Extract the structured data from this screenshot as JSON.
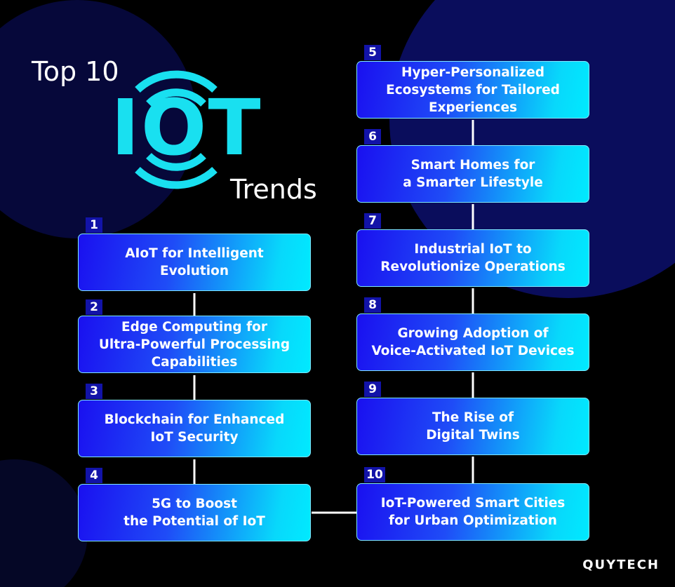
{
  "header": {
    "top": "Top 10",
    "logo": "IOT",
    "subtitle": "Trends"
  },
  "items": [
    {
      "number": "1",
      "lines": [
        "AIoT for Intelligent",
        "Evolution"
      ]
    },
    {
      "number": "2",
      "lines": [
        "Edge Computing for",
        "Ultra-Powerful Processing",
        "Capabilities"
      ]
    },
    {
      "number": "3",
      "lines": [
        "Blockchain for Enhanced",
        "IoT Security"
      ]
    },
    {
      "number": "4",
      "lines": [
        "5G to Boost",
        "the Potential of IoT"
      ]
    },
    {
      "number": "5",
      "lines": [
        "Hyper-Personalized",
        "Ecosystems for Tailored",
        "Experiences"
      ]
    },
    {
      "number": "6",
      "lines": [
        "Smart Homes for",
        "a Smarter Lifestyle"
      ]
    },
    {
      "number": "7",
      "lines": [
        "Industrial IoT to",
        "Revolutionize Operations"
      ]
    },
    {
      "number": "8",
      "lines": [
        "Growing Adoption of",
        "Voice-Activated IoT Devices"
      ]
    },
    {
      "number": "9",
      "lines": [
        "The Rise of",
        "Digital Twins"
      ]
    },
    {
      "number": "10",
      "lines": [
        "IoT-Powered Smart Cities",
        "for Urban Optimization"
      ]
    }
  ],
  "brand": "QUYTECH"
}
